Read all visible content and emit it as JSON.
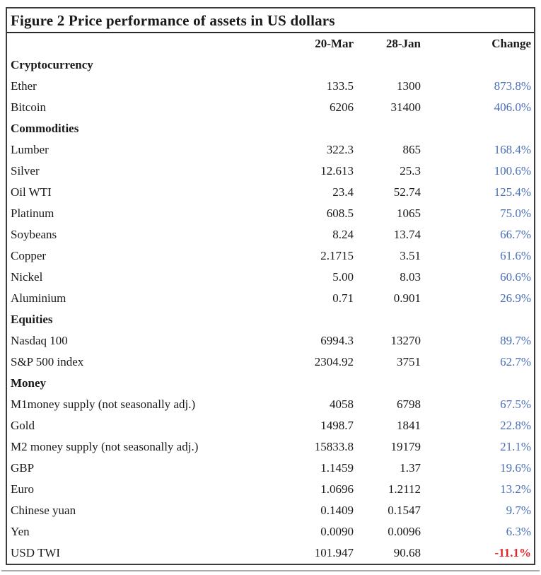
{
  "figure": {
    "title": "Figure 2 Price performance of assets in US dollars",
    "columns": [
      "20-Mar",
      "28-Jan",
      "Change"
    ],
    "colors": {
      "positive_change": "#4a6eb5",
      "negative_change": "#e3242b",
      "text": "#1a1a1a",
      "border": "#3c3c3c"
    },
    "rows": [
      {
        "type": "category",
        "label": "Cryptocurrency"
      },
      {
        "type": "data",
        "label": "Ether",
        "mar": "133.5",
        "jan": "1300",
        "change": "873.8%"
      },
      {
        "type": "data",
        "label": "Bitcoin",
        "mar": "6206",
        "jan": "31400",
        "change": "406.0%"
      },
      {
        "type": "category",
        "label": "Commodities"
      },
      {
        "type": "data",
        "label": "Lumber",
        "mar": "322.3",
        "jan": "865",
        "change": "168.4%"
      },
      {
        "type": "data",
        "label": "Silver",
        "mar": "12.613",
        "jan": "25.3",
        "change": "100.6%"
      },
      {
        "type": "data",
        "label": "Oil WTI",
        "mar": "23.4",
        "jan": "52.74",
        "change": "125.4%"
      },
      {
        "type": "data",
        "label": "Platinum",
        "mar": "608.5",
        "jan": "1065",
        "change": "75.0%"
      },
      {
        "type": "data",
        "label": "Soybeans",
        "mar": "8.24",
        "jan": "13.74",
        "change": "66.7%"
      },
      {
        "type": "data",
        "label": "Copper",
        "mar": "2.1715",
        "jan": "3.51",
        "change": "61.6%"
      },
      {
        "type": "data",
        "label": "Nickel",
        "mar": "5.00",
        "jan": "8.03",
        "change": "60.6%"
      },
      {
        "type": "data",
        "label": "Aluminium",
        "mar": "0.71",
        "jan": "0.901",
        "change": "26.9%"
      },
      {
        "type": "category",
        "label": "Equities"
      },
      {
        "type": "data",
        "label": "Nasdaq 100",
        "mar": "6994.3",
        "jan": "13270",
        "change": "89.7%"
      },
      {
        "type": "data",
        "label": "S&P 500 index",
        "mar": "2304.92",
        "jan": "3751",
        "change": "62.7%"
      },
      {
        "type": "category",
        "label": "Money"
      },
      {
        "type": "data",
        "label": "M1money supply (not seasonally adj.)",
        "mar": "4058",
        "jan": "6798",
        "change": "67.5%"
      },
      {
        "type": "data",
        "label": "Gold",
        "mar": "1498.7",
        "jan": "1841",
        "change": "22.8%"
      },
      {
        "type": "data",
        "label": "M2 money supply (not seasonally adj.)",
        "mar": "15833.8",
        "jan": "19179",
        "change": "21.1%"
      },
      {
        "type": "data",
        "label": "GBP",
        "mar": "1.1459",
        "jan": "1.37",
        "change": "19.6%"
      },
      {
        "type": "data",
        "label": "Euro",
        "mar": "1.0696",
        "jan": "1.2112",
        "change": "13.2%"
      },
      {
        "type": "data",
        "label": "Chinese yuan",
        "mar": "0.1409",
        "jan": "0.1547",
        "change": "9.7%"
      },
      {
        "type": "data",
        "label": "Yen",
        "mar": "0.0090",
        "jan": "0.0096",
        "change": "6.3%"
      },
      {
        "type": "data",
        "label": "USD TWI",
        "mar": "101.947",
        "jan": "90.68",
        "change": "-11.1%",
        "negative": true
      }
    ]
  }
}
